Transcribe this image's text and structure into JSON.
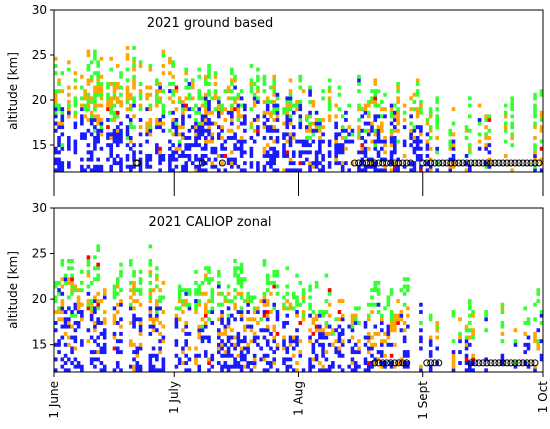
{
  "chart_data": [
    {
      "type": "heatmap",
      "title": "2021   ground based",
      "ylabel": "altitude [km]",
      "xlabel": "",
      "ylim": [
        12,
        30
      ],
      "yticks": [
        15,
        20,
        25,
        30
      ],
      "xlim_days": [
        0,
        122
      ],
      "xticks_days": [
        0,
        30,
        61,
        92,
        122
      ],
      "xtick_labels_shown": false,
      "grid": false,
      "legend": "none",
      "colors": {
        "green": "#33ff33",
        "blue": "#1a1aff",
        "orange": "#ffa500",
        "red": "#ff0000"
      },
      "series": [
        {
          "color": "green",
          "mean_altitude_by_month": {
            "June": 19,
            "July": 20,
            "August": 19,
            "September": 16
          }
        },
        {
          "color": "blue",
          "mean_altitude_by_month": {
            "June": 17,
            "July": 18,
            "August": 17,
            "September": 14
          }
        },
        {
          "color": "orange",
          "mean_altitude_by_month": {
            "June": 19,
            "July": 19,
            "August": 18,
            "September": 15
          }
        }
      ],
      "circle_marker_days": [
        20.5,
        20.9,
        37,
        42,
        75,
        76,
        77,
        78,
        79,
        80,
        81,
        82,
        83,
        84,
        85,
        86,
        87,
        88,
        89,
        92,
        93,
        94,
        95,
        96,
        97,
        98,
        99,
        100,
        101,
        102,
        103,
        104,
        105,
        106,
        107,
        108,
        109,
        110,
        111,
        112,
        113,
        114,
        115,
        116,
        117,
        118,
        119,
        120,
        121
      ],
      "circle_marker_altitude": 13
    },
    {
      "type": "heatmap",
      "title": "2021   CALIOP zonal",
      "ylabel": "altitude [km]",
      "xlabel": "",
      "ylim": [
        12,
        30
      ],
      "yticks": [
        15,
        20,
        25,
        30
      ],
      "xlim_days": [
        0,
        122
      ],
      "xticks_days": [
        0,
        30,
        61,
        92,
        122
      ],
      "xtick_labels": [
        "1 June",
        "1 July",
        "1 Aug",
        "1 Sept",
        "1 Oct"
      ],
      "grid": false,
      "legend": "none",
      "colors": {
        "green": "#33ff33",
        "blue": "#1a1aff",
        "orange": "#ffa500",
        "red": "#ff0000"
      },
      "series": [
        {
          "color": "green",
          "mean_altitude_by_month": {
            "June": 21,
            "July": 20,
            "August": 19,
            "September": 17
          }
        },
        {
          "color": "blue",
          "mean_altitude_by_month": {
            "June": 18,
            "July": 17,
            "August": 16,
            "September": 14
          }
        },
        {
          "color": "orange",
          "mean_altitude_by_month": {
            "June": 19,
            "July": 18,
            "August": 17,
            "September": 16
          }
        }
      ],
      "circle_marker_days": [
        80,
        81,
        82,
        83,
        84,
        85,
        86,
        87,
        88,
        93,
        94,
        95,
        96,
        104,
        105,
        106,
        107,
        108,
        109,
        110,
        111,
        112,
        113,
        114,
        115,
        116,
        117,
        118,
        119,
        120
      ],
      "circle_marker_altitude": 13
    }
  ]
}
